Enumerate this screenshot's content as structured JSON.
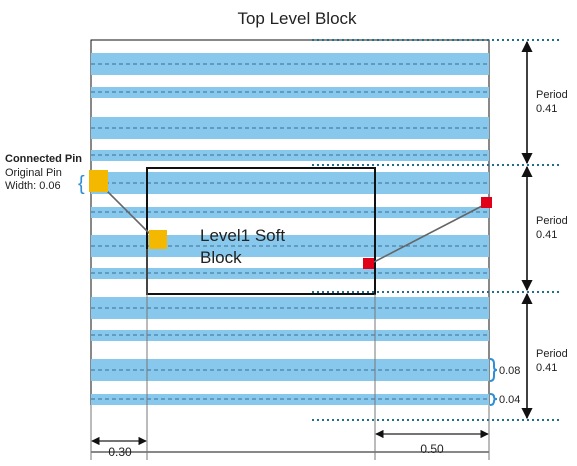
{
  "title": "Top Level Block",
  "pin_labels": {
    "connected": "Connected Pin",
    "original_line1": "Original Pin",
    "original_line2": "Width: 0.06"
  },
  "soft_block": {
    "line1": "Level1 Soft",
    "line2": "Block"
  },
  "periods": [
    {
      "label": "Period",
      "value": "0.41"
    },
    {
      "label": "Period",
      "value": "0.41"
    },
    {
      "label": "Period",
      "value": "0.41"
    }
  ],
  "track_widths": {
    "wide": "0.08",
    "narrow": "0.04"
  },
  "offsets": {
    "left": "0.30",
    "right": "0.50"
  },
  "colors": {
    "track": "#88c8ec",
    "pin_original": "#f5b800",
    "pin_connected": "#e0001a",
    "dotted": "#1f6e8c",
    "brace": "#2e8fd6",
    "connector": "#666666"
  }
}
